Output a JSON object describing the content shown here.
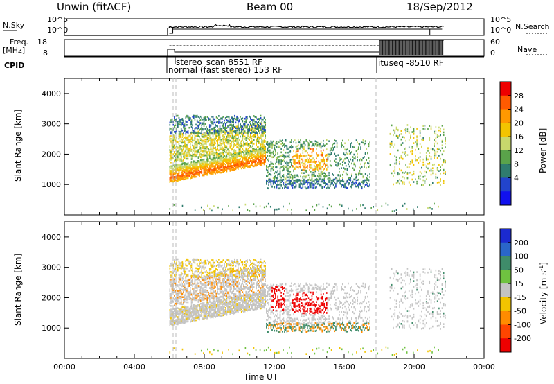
{
  "header": {
    "radar": "Unwin (fitACF)",
    "beam": "Beam 00",
    "date": "18/Sep/2012"
  },
  "top_panels": {
    "nsky_label": "N.Sky",
    "nsearch_label": "N.Search",
    "nsky_ticks": [
      "10^5",
      "10^0"
    ],
    "nsearch_ticks": [
      "10^5",
      "10^0"
    ],
    "freq_label_1": "Freq.",
    "freq_label_2": "[MHz]",
    "freq_ticks": [
      "18",
      "8"
    ],
    "nave_label": "Nave",
    "nave_ticks": [
      "60",
      "0"
    ],
    "cpid_label": "CPID",
    "cpid_entries": [
      {
        "text": "stereo_scan 8551 RF",
        "start_hour": 6.4
      },
      {
        "text": "normal (fast stereo) 153 RF",
        "start_hour": 6.0
      },
      {
        "text": "ituseq -8510 RF",
        "start_hour": 18.0
      }
    ]
  },
  "chart_data": [
    {
      "type": "heatmap",
      "name": "power",
      "xlabel": "",
      "ylabel": "Slant Range [km]",
      "xlim": [
        0,
        24
      ],
      "ylim": [
        0,
        4500
      ],
      "yticks": [
        "1000",
        "2000",
        "3000",
        "4000"
      ],
      "colorbar_label": "Power [dB]",
      "colorbar_ticks": [
        "28",
        "24",
        "20",
        "16",
        "12",
        "8",
        "4"
      ],
      "colorbar_colors": [
        "#ee0000",
        "#ff5a00",
        "#ff9900",
        "#f2c400",
        "#c8d86c",
        "#5aa34a",
        "#2f7c6e",
        "#2244cc",
        "#1111ee"
      ]
    },
    {
      "type": "heatmap",
      "name": "velocity",
      "xlabel": "Time UT",
      "ylabel": "Slant Range [km]",
      "xlim": [
        0,
        24
      ],
      "ylim": [
        0,
        4500
      ],
      "yticks": [
        "1000",
        "2000",
        "3000",
        "4000"
      ],
      "xticks": [
        "00:00",
        "04:00",
        "08:00",
        "12:00",
        "16:00",
        "20:00",
        "00:00"
      ],
      "colorbar_label": "Velocity [m s",
      "colorbar_label_sup": "-1",
      "colorbar_label_end": "]",
      "colorbar_ticks": [
        "200",
        "100",
        "50",
        "15",
        "-15",
        "-50",
        "-100",
        "-200"
      ],
      "colorbar_colors": [
        "#1b2ad0",
        "#2a66c9",
        "#3f8c6a",
        "#6fc240",
        "#c4c4c4",
        "#f2c400",
        "#ff8c00",
        "#ff4500",
        "#ee0000"
      ]
    }
  ]
}
